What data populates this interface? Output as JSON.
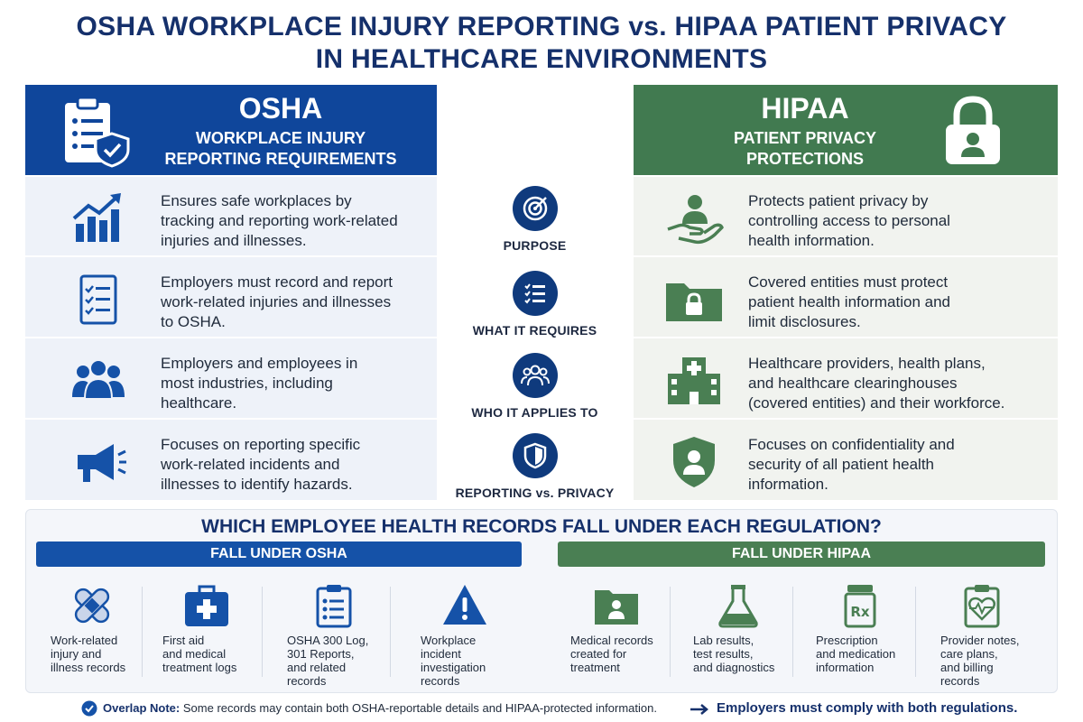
{
  "title_line1": "OSHA WORKPLACE INJURY REPORTING vs. HIPAA PATIENT PRIVACY",
  "title_line2": "IN HEALTHCARE ENVIRONMENTS",
  "colors": {
    "osha_blue": "#0f469b",
    "hipaa_green": "#417a50",
    "navy": "#15306b"
  },
  "osha": {
    "title": "OSHA",
    "subtitle_line1": "WORKPLACE INJURY",
    "subtitle_line2": "REPORTING REQUIREMENTS",
    "header_icon": "clipboard-shield-icon",
    "rows": [
      {
        "icon": "growth-chart-icon",
        "line1": "Ensures safe workplaces by",
        "line2": "tracking and reporting work-related",
        "line3": "injuries and illnesses."
      },
      {
        "icon": "checklist-icon",
        "line1": "Employers must record and report",
        "line2": "work-related injuries and illnesses",
        "line3": "to OSHA."
      },
      {
        "icon": "people-group-icon",
        "line1": "Employers and employees in",
        "line2": "most industries, including",
        "line3": "healthcare."
      },
      {
        "icon": "megaphone-icon",
        "line1": "Focuses on reporting specific",
        "line2": "work-related incidents and",
        "line3": "illnesses to identify hazards."
      }
    ]
  },
  "hipaa": {
    "title": "HIPAA",
    "subtitle_line1": "PATIENT PRIVACY",
    "subtitle_line2": "PROTECTIONS",
    "header_icon": "padlock-person-icon",
    "rows": [
      {
        "icon": "hand-person-icon",
        "line1": "Protects patient privacy by",
        "line2": "controlling access to personal",
        "line3": "health information."
      },
      {
        "icon": "locked-folder-icon",
        "line1": "Covered entities must protect",
        "line2": "patient health information and",
        "line3": "limit disclosures."
      },
      {
        "icon": "hospital-icon",
        "line1": "Healthcare providers, health plans,",
        "line2": "and healthcare clearinghouses",
        "line3": "(covered entities) and their workforce."
      },
      {
        "icon": "shield-person-icon",
        "line1": "Focuses on confidentiality and",
        "line2": "security of all patient health",
        "line3": "information."
      }
    ]
  },
  "middle": [
    {
      "icon": "target-icon",
      "label": "PURPOSE"
    },
    {
      "icon": "list-icon",
      "label": "WHAT IT REQUIRES"
    },
    {
      "icon": "group-icon",
      "label": "WHO IT APPLIES TO"
    },
    {
      "icon": "shield-icon",
      "label": "REPORTING vs. PRIVACY"
    }
  ],
  "records": {
    "question": "WHICH EMPLOYEE HEALTH RECORDS FALL UNDER EACH REGULATION?",
    "osha_label": "FALL UNDER OSHA",
    "hipaa_label": "FALL UNDER HIPAA",
    "osha_items": [
      {
        "icon": "bandage-icon",
        "line1": "Work-related",
        "line2": "injury and",
        "line3": "illness records",
        "line4": ""
      },
      {
        "icon": "first-aid-kit-icon",
        "line1": "First aid",
        "line2": "and medical",
        "line3": "treatment logs",
        "line4": ""
      },
      {
        "icon": "clipboard-list-icon",
        "line1": "OSHA 300 Log,",
        "line2": "301 Reports,",
        "line3": "and related",
        "line4": "records"
      },
      {
        "icon": "warning-icon",
        "line1": "Workplace",
        "line2": "incident",
        "line3": "investigation",
        "line4": "records"
      }
    ],
    "hipaa_items": [
      {
        "icon": "person-folder-icon",
        "line1": "Medical records",
        "line2": "created for",
        "line3": "treatment",
        "line4": ""
      },
      {
        "icon": "flask-icon",
        "line1": "Lab results,",
        "line2": "test results,",
        "line3": "and diagnostics",
        "line4": ""
      },
      {
        "icon": "prescription-bottle-icon",
        "line1": "Prescription",
        "line2": "and medication",
        "line3": "information",
        "line4": ""
      },
      {
        "icon": "heart-clipboard-icon",
        "line1": "Provider notes,",
        "line2": "care plans,",
        "line3": "and billing",
        "line4": "records"
      }
    ]
  },
  "footer": {
    "note_label": "Overlap Note:",
    "note_text": "Some records may contain both OSHA-reportable details and HIPAA-protected information.",
    "arrow_text": "Employers must comply with both regulations."
  }
}
